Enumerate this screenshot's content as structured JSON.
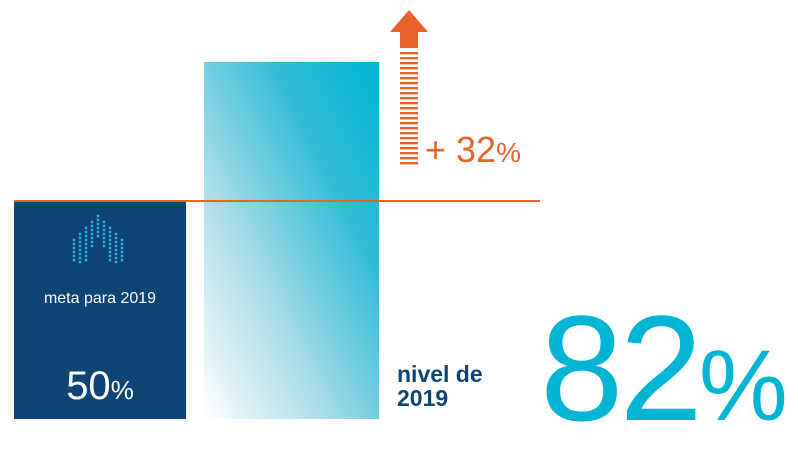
{
  "chart_data": {
    "type": "bar",
    "categories": [
      "meta para 2019",
      "nivel de 2019"
    ],
    "values": [
      50,
      82
    ],
    "unit": "%",
    "ylim": [
      0,
      100
    ],
    "colors": {
      "target": "#0d4476",
      "level": "#00b5d3",
      "increase": "#e8622c"
    },
    "annotations": {
      "increase": "+ 32",
      "increase_unit": "%"
    }
  },
  "target": {
    "label": "meta para 2019",
    "value": "50",
    "unit": "%",
    "icon": "arrow-up-dots-icon"
  },
  "level": {
    "label": "nivel de 2019",
    "value": "82",
    "unit": "%"
  }
}
